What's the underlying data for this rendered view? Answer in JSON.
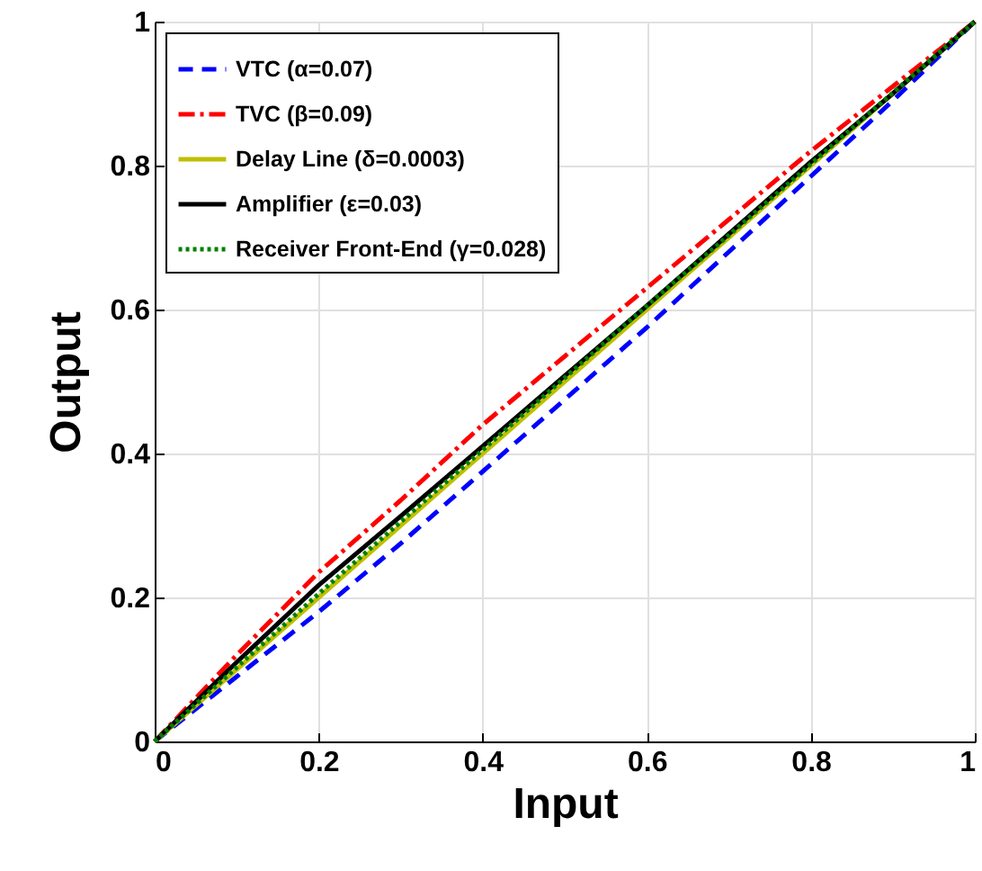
{
  "chart_data": {
    "type": "line",
    "xlabel": "Input",
    "ylabel": "Output",
    "x": [
      0,
      0.1,
      0.2,
      0.3,
      0.4,
      0.5,
      0.6,
      0.7,
      0.8,
      0.9,
      1
    ],
    "series": [
      {
        "name": "VTC (α=0.07)",
        "color": "#0000ff",
        "line_style": "dashed",
        "values": [
          0,
          0.09,
          0.18,
          0.275,
          0.375,
          0.475,
          0.575,
          0.68,
          0.785,
          0.89,
          1
        ]
      },
      {
        "name": "TVC (β=0.09)",
        "color": "#ff0000",
        "line_style": "dashdot",
        "values": [
          0,
          0.12,
          0.235,
          0.335,
          0.44,
          0.535,
          0.63,
          0.725,
          0.82,
          0.91,
          1
        ]
      },
      {
        "name": "Delay Line  (δ=0.0003)",
        "color": "#bfbf00",
        "line_style": "solid",
        "values": [
          0,
          0.1,
          0.2,
          0.3,
          0.4,
          0.5,
          0.6,
          0.7,
          0.8,
          0.9,
          1
        ]
      },
      {
        "name": "Amplifier  (ε=0.03)",
        "color": "#000000",
        "line_style": "solid",
        "values": [
          0,
          0.11,
          0.217,
          0.313,
          0.41,
          0.508,
          0.605,
          0.705,
          0.805,
          0.9,
          1
        ]
      },
      {
        "name": "Receiver Front-End (γ=0.028)",
        "color": "#008000",
        "line_style": "dotted",
        "values": [
          0,
          0.103,
          0.205,
          0.305,
          0.405,
          0.505,
          0.605,
          0.703,
          0.802,
          0.901,
          1
        ]
      }
    ],
    "xlim": [
      0,
      1
    ],
    "ylim": [
      0,
      1
    ],
    "xticks": [
      0,
      0.2,
      0.4,
      0.6,
      0.8,
      1
    ],
    "yticks": [
      0,
      0.2,
      0.4,
      0.6,
      0.8,
      1
    ],
    "grid": true,
    "legend": "top left"
  }
}
